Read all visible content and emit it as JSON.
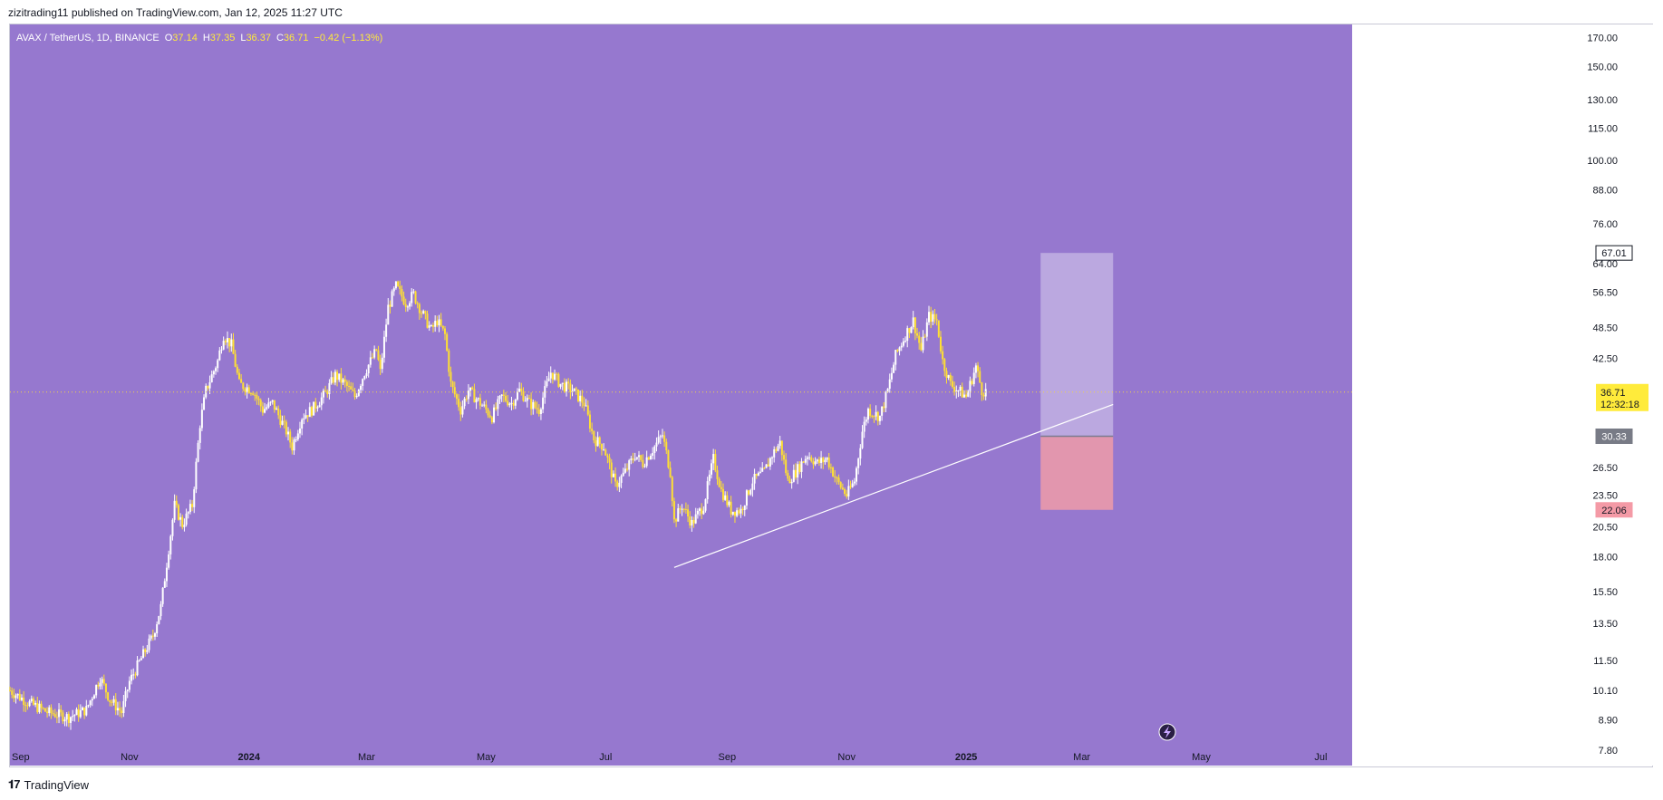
{
  "header": {
    "published": "zizitrading11 published on TradingView.com, Jan 12, 2025 11:27 UTC"
  },
  "footer": {
    "brand": "TradingView"
  },
  "colors": {
    "background": "#9678cf",
    "candle_up": "#ffffff",
    "candle_down": "#ffe033",
    "trendline": "#ffffff",
    "target_zone": "#bba8e0",
    "stop_zone": "#e296ae"
  },
  "chart_data": {
    "type": "candlestick",
    "symbol_line": {
      "symbol": "AVAX / TetherUS, 1D, BINANCE",
      "open_label": "O",
      "open": "37.14",
      "high_label": "H",
      "high": "37.35",
      "low_label": "L",
      "low": "36.37",
      "close_label": "C",
      "close": "36.71",
      "change": "−0.42 (−1.13%)"
    },
    "y_scale": "log",
    "y_ticks": [
      "170.00",
      "150.00",
      "130.00",
      "115.00",
      "100.00",
      "88.00",
      "76.00",
      "64.00",
      "56.50",
      "48.50",
      "42.50",
      "36.71",
      "30.33",
      "26.50",
      "23.50",
      "20.50",
      "18.00",
      "15.50",
      "13.50",
      "11.50",
      "10.10",
      "8.90",
      "7.80"
    ],
    "ylim": [
      7.3,
      180
    ],
    "x_ticks": [
      "Sep",
      "Nov",
      "2024",
      "Mar",
      "May",
      "Jul",
      "Sep",
      "Nov",
      "2025",
      "Mar",
      "May",
      "Jul"
    ],
    "x_tick_dates": [
      "2023-09-01",
      "2023-11-01",
      "2024-01-01",
      "2024-03-01",
      "2024-05-01",
      "2024-07-01",
      "2024-09-01",
      "2024-11-01",
      "2025-01-01",
      "2025-03-01",
      "2025-05-01",
      "2025-07-01"
    ],
    "x_range": [
      "2023-09-01",
      "2025-07-17"
    ],
    "price_path": [
      [
        "2023-09-01",
        10.1
      ],
      [
        "2023-09-10",
        9.6
      ],
      [
        "2023-09-20",
        9.2
      ],
      [
        "2023-10-01",
        9.0
      ],
      [
        "2023-10-10",
        9.3
      ],
      [
        "2023-10-17",
        10.7
      ],
      [
        "2023-10-22",
        9.7
      ],
      [
        "2023-10-28",
        9.2
      ],
      [
        "2023-11-01",
        10.5
      ],
      [
        "2023-11-08",
        11.8
      ],
      [
        "2023-11-13",
        12.8
      ],
      [
        "2023-11-17",
        14.5
      ],
      [
        "2023-11-20",
        17.5
      ],
      [
        "2023-11-24",
        22.5
      ],
      [
        "2023-11-28",
        20.7
      ],
      [
        "2023-12-03",
        22.5
      ],
      [
        "2023-12-07",
        32
      ],
      [
        "2023-12-10",
        37
      ],
      [
        "2023-12-16",
        42
      ],
      [
        "2023-12-19",
        47
      ],
      [
        "2023-12-23",
        45
      ],
      [
        "2023-12-27",
        38
      ],
      [
        "2024-01-03",
        37
      ],
      [
        "2024-01-08",
        34
      ],
      [
        "2024-01-13",
        35
      ],
      [
        "2024-01-20",
        31
      ],
      [
        "2024-01-23",
        29
      ],
      [
        "2024-01-28",
        33
      ],
      [
        "2024-02-02",
        34
      ],
      [
        "2024-02-09",
        36.5
      ],
      [
        "2024-02-14",
        39.5
      ],
      [
        "2024-02-19",
        38
      ],
      [
        "2024-02-24",
        36
      ],
      [
        "2024-02-29",
        40
      ],
      [
        "2024-03-06",
        44
      ],
      [
        "2024-03-08",
        40
      ],
      [
        "2024-03-12",
        53
      ],
      [
        "2024-03-16",
        58
      ],
      [
        "2024-03-21",
        54
      ],
      [
        "2024-03-25",
        56
      ],
      [
        "2024-03-29",
        52
      ],
      [
        "2024-04-03",
        48
      ],
      [
        "2024-04-06",
        50
      ],
      [
        "2024-04-10",
        47
      ],
      [
        "2024-04-13",
        38
      ],
      [
        "2024-04-18",
        34
      ],
      [
        "2024-04-22",
        37
      ],
      [
        "2024-04-28",
        35
      ],
      [
        "2024-05-04",
        33
      ],
      [
        "2024-05-09",
        36
      ],
      [
        "2024-05-14",
        35
      ],
      [
        "2024-05-18",
        37
      ],
      [
        "2024-05-23",
        35
      ],
      [
        "2024-05-28",
        34
      ],
      [
        "2024-06-03",
        40
      ],
      [
        "2024-06-08",
        38
      ],
      [
        "2024-06-14",
        37
      ],
      [
        "2024-06-20",
        35
      ],
      [
        "2024-06-25",
        30
      ],
      [
        "2024-06-30",
        29
      ],
      [
        "2024-07-06",
        24.5
      ],
      [
        "2024-07-11",
        26
      ],
      [
        "2024-07-16",
        28
      ],
      [
        "2024-07-20",
        27
      ],
      [
        "2024-07-26",
        29
      ],
      [
        "2024-07-30",
        30.5
      ],
      [
        "2024-08-03",
        26
      ],
      [
        "2024-08-05",
        21
      ],
      [
        "2024-08-09",
        22.5
      ],
      [
        "2024-08-14",
        20.8
      ],
      [
        "2024-08-20",
        22.5
      ],
      [
        "2024-08-25",
        27.5
      ],
      [
        "2024-08-29",
        24
      ],
      [
        "2024-09-03",
        22
      ],
      [
        "2024-09-08",
        22
      ],
      [
        "2024-09-14",
        25
      ],
      [
        "2024-09-20",
        26
      ],
      [
        "2024-09-24",
        28
      ],
      [
        "2024-09-28",
        29.5
      ],
      [
        "2024-10-02",
        25
      ],
      [
        "2024-10-06",
        26
      ],
      [
        "2024-10-12",
        28
      ],
      [
        "2024-10-17",
        27
      ],
      [
        "2024-10-22",
        27.5
      ],
      [
        "2024-10-27",
        25
      ],
      [
        "2024-11-01",
        23.5
      ],
      [
        "2024-11-05",
        25
      ],
      [
        "2024-11-09",
        31
      ],
      [
        "2024-11-12",
        34
      ],
      [
        "2024-11-18",
        33
      ],
      [
        "2024-11-22",
        37
      ],
      [
        "2024-11-26",
        43
      ],
      [
        "2024-12-01",
        47
      ],
      [
        "2024-12-05",
        50
      ],
      [
        "2024-12-09",
        44
      ],
      [
        "2024-12-13",
        51
      ],
      [
        "2024-12-17",
        50
      ],
      [
        "2024-12-20",
        42
      ],
      [
        "2024-12-24",
        38
      ],
      [
        "2024-12-28",
        37
      ],
      [
        "2025-01-01",
        36
      ],
      [
        "2025-01-06",
        41
      ],
      [
        "2025-01-09",
        37
      ],
      [
        "2025-01-12",
        36.71
      ]
    ],
    "annotations": {
      "trendline": {
        "from": [
          "2024-08-05",
          17.2
        ],
        "to": [
          "2025-03-17",
          34.8
        ]
      },
      "target_zone": {
        "x_start": "2025-02-08",
        "x_end": "2025-03-17",
        "top": 67.01,
        "bottom": 30.33
      },
      "stop_zone": {
        "x_start": "2025-02-08",
        "x_end": "2025-03-17",
        "top": 30.33,
        "bottom": 22.06
      },
      "current_price_line": 36.71
    },
    "price_labels": {
      "current": {
        "value": "36.71",
        "countdown": "12:32:18"
      },
      "target": "67.01",
      "entry": "30.33",
      "stop": "22.06"
    }
  }
}
